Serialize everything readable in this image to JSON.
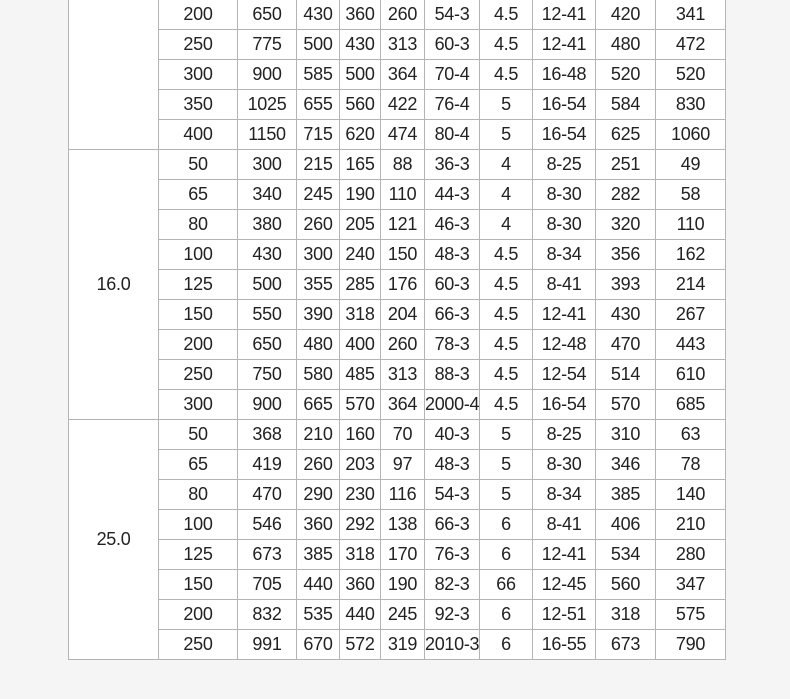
{
  "groups": [
    {
      "pressure": "",
      "rows": [
        [
          "200",
          "650",
          "430",
          "360",
          "260",
          "54-3",
          "4.5",
          "12-41",
          "420",
          "341"
        ],
        [
          "250",
          "775",
          "500",
          "430",
          "313",
          "60-3",
          "4.5",
          "12-41",
          "480",
          "472"
        ],
        [
          "300",
          "900",
          "585",
          "500",
          "364",
          "70-4",
          "4.5",
          "16-48",
          "520",
          "520"
        ],
        [
          "350",
          "1025",
          "655",
          "560",
          "422",
          "76-4",
          "5",
          "16-54",
          "584",
          "830"
        ],
        [
          "400",
          "1150",
          "715",
          "620",
          "474",
          "80-4",
          "5",
          "16-54",
          "625",
          "1060"
        ]
      ]
    },
    {
      "pressure": "16.0",
      "rows": [
        [
          "50",
          "300",
          "215",
          "165",
          "88",
          "36-3",
          "4",
          "8-25",
          "251",
          "49"
        ],
        [
          "65",
          "340",
          "245",
          "190",
          "110",
          "44-3",
          "4",
          "8-30",
          "282",
          "58"
        ],
        [
          "80",
          "380",
          "260",
          "205",
          "121",
          "46-3",
          "4",
          "8-30",
          "320",
          "110"
        ],
        [
          "100",
          "430",
          "300",
          "240",
          "150",
          "48-3",
          "4.5",
          "8-34",
          "356",
          "162"
        ],
        [
          "125",
          "500",
          "355",
          "285",
          "176",
          "60-3",
          "4.5",
          "8-41",
          "393",
          "214"
        ],
        [
          "150",
          "550",
          "390",
          "318",
          "204",
          "66-3",
          "4.5",
          "12-41",
          "430",
          "267"
        ],
        [
          "200",
          "650",
          "480",
          "400",
          "260",
          "78-3",
          "4.5",
          "12-48",
          "470",
          "443"
        ],
        [
          "250",
          "750",
          "580",
          "485",
          "313",
          "88-3",
          "4.5",
          "12-54",
          "514",
          "610"
        ],
        [
          "300",
          "900",
          "665",
          "570",
          "364",
          "2000-4",
          "4.5",
          "16-54",
          "570",
          "685"
        ]
      ]
    },
    {
      "pressure": "25.0",
      "rows": [
        [
          "50",
          "368",
          "210",
          "160",
          "70",
          "40-3",
          "5",
          "8-25",
          "310",
          "63"
        ],
        [
          "65",
          "419",
          "260",
          "203",
          "97",
          "48-3",
          "5",
          "8-30",
          "346",
          "78"
        ],
        [
          "80",
          "470",
          "290",
          "230",
          "116",
          "54-3",
          "5",
          "8-34",
          "385",
          "140"
        ],
        [
          "100",
          "546",
          "360",
          "292",
          "138",
          "66-3",
          "6",
          "8-41",
          "406",
          "210"
        ],
        [
          "125",
          "673",
          "385",
          "318",
          "170",
          "76-3",
          "6",
          "12-41",
          "534",
          "280"
        ],
        [
          "150",
          "705",
          "440",
          "360",
          "190",
          "82-3",
          "66",
          "12-45",
          "560",
          "347"
        ],
        [
          "200",
          "832",
          "535",
          "440",
          "245",
          "92-3",
          "6",
          "12-51",
          "318",
          "575"
        ],
        [
          "250",
          "991",
          "670",
          "572",
          "319",
          "2010-3",
          "6",
          "16-55",
          "673",
          "790"
        ]
      ]
    }
  ]
}
